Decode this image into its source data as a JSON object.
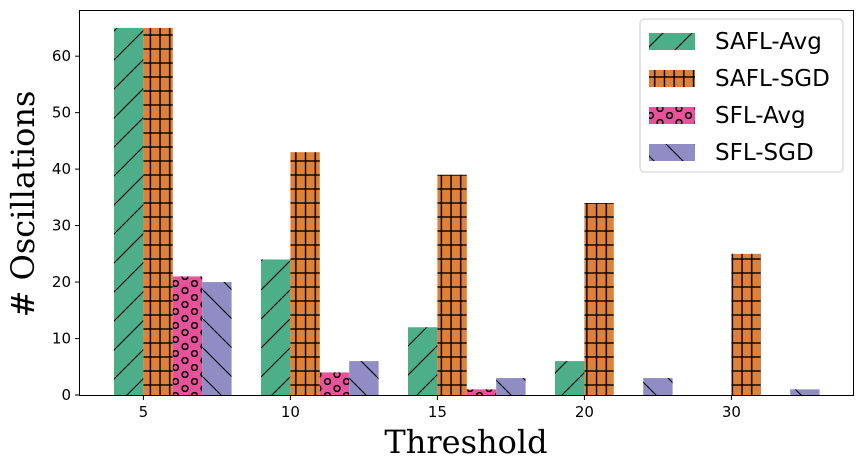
{
  "chart_data": {
    "type": "bar",
    "title": "",
    "xlabel": "Threshold",
    "ylabel": "# Oscillations",
    "categories": [
      "5",
      "10",
      "15",
      "20",
      "30"
    ],
    "ylim": [
      0,
      68
    ],
    "yticks": [
      0,
      10,
      20,
      30,
      40,
      50,
      60
    ],
    "grid": false,
    "legend_position": "top-right",
    "series": [
      {
        "name": "SAFL-Avg",
        "color": "#4daf8a",
        "hatch": "diagonal",
        "values": [
          65,
          24,
          12,
          6,
          0
        ]
      },
      {
        "name": "SAFL-SGD",
        "color": "#e0813a",
        "hatch": "grid",
        "values": [
          65,
          43,
          39,
          34,
          25
        ]
      },
      {
        "name": "SFL-Avg",
        "color": "#e7539a",
        "hatch": "circles",
        "values": [
          21,
          4,
          1,
          0,
          0
        ]
      },
      {
        "name": "SFL-SGD",
        "color": "#8f8dc3",
        "hatch": "backslash",
        "values": [
          20,
          6,
          3,
          3,
          1
        ]
      }
    ]
  }
}
